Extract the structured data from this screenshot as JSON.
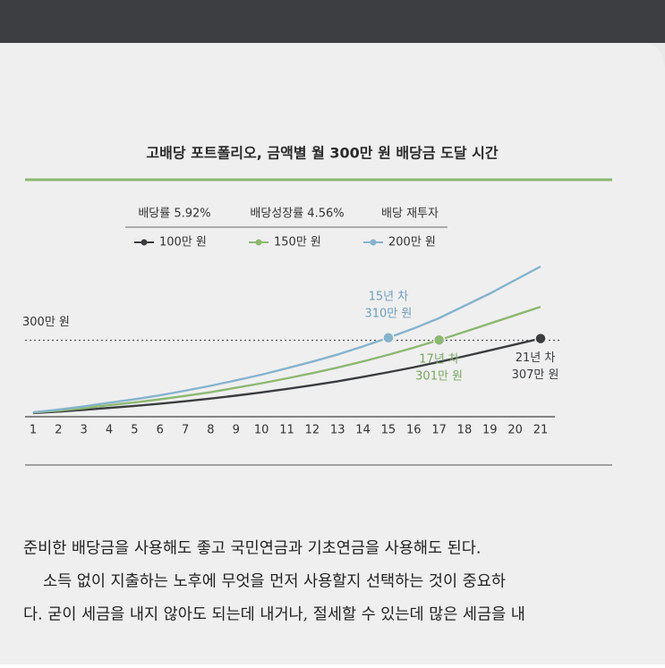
{
  "chart_data": {
    "type": "line",
    "title": "고배당 포트폴리오, 금액별 월 300만 원 배당금 도달 시간",
    "subtitle": [
      "배당률 5.92%",
      "배당성장률 4.56%",
      "배당 재투자"
    ],
    "x": [
      1,
      2,
      3,
      4,
      5,
      6,
      7,
      8,
      9,
      10,
      11,
      12,
      13,
      14,
      15,
      16,
      17,
      18,
      19,
      20,
      21
    ],
    "xlim": [
      1,
      21
    ],
    "ylim": [
      0,
      640
    ],
    "series": [
      {
        "name": "100만 원",
        "color": "#3a3d3f",
        "values": [
          4,
          10,
          17,
          25,
          33,
          42,
          52,
          63,
          75,
          88,
          102,
          117,
          133,
          151,
          170,
          190,
          212,
          235,
          259,
          283,
          307
        ]
      },
      {
        "name": "150만 원",
        "color": "#8db872",
        "values": [
          6,
          14,
          24,
          36,
          47,
          60,
          74,
          89,
          107,
          125,
          145,
          166,
          189,
          214,
          241,
          270,
          301,
          334,
          368,
          402,
          436
        ]
      },
      {
        "name": "200만 원",
        "color": "#86b3cc",
        "values": [
          7,
          18,
          31,
          46,
          60,
          76,
          95,
          115,
          137,
          160,
          186,
          213,
          242,
          275,
          310,
          348,
          390,
          440,
          490,
          545,
          600
        ]
      }
    ],
    "reference_line": {
      "value": 300,
      "label": "300만 원"
    },
    "annotations": [
      {
        "lines": [
          "15년 차",
          "310만 원"
        ],
        "color": "#6f9fbb"
      },
      {
        "lines": [
          "17년 차",
          "301만 원"
        ],
        "color": "#7aa862"
      },
      {
        "lines": [
          "21년 차",
          "307만 원"
        ],
        "color": "#3a3d3f"
      }
    ],
    "legend": "top-left"
  },
  "body_text": [
    "준비한 배당금을 사용해도 좋고 국민연금과 기초연금을 사용해도 된다.",
    "소득 없이 지출하는 노후에 무엇을 먼저 사용할지 선택하는 것이 중요하",
    "다. 굳이 세금을 내지 않아도 되는데 내거나, 절세할 수 있는데 많은 세금을 내"
  ]
}
